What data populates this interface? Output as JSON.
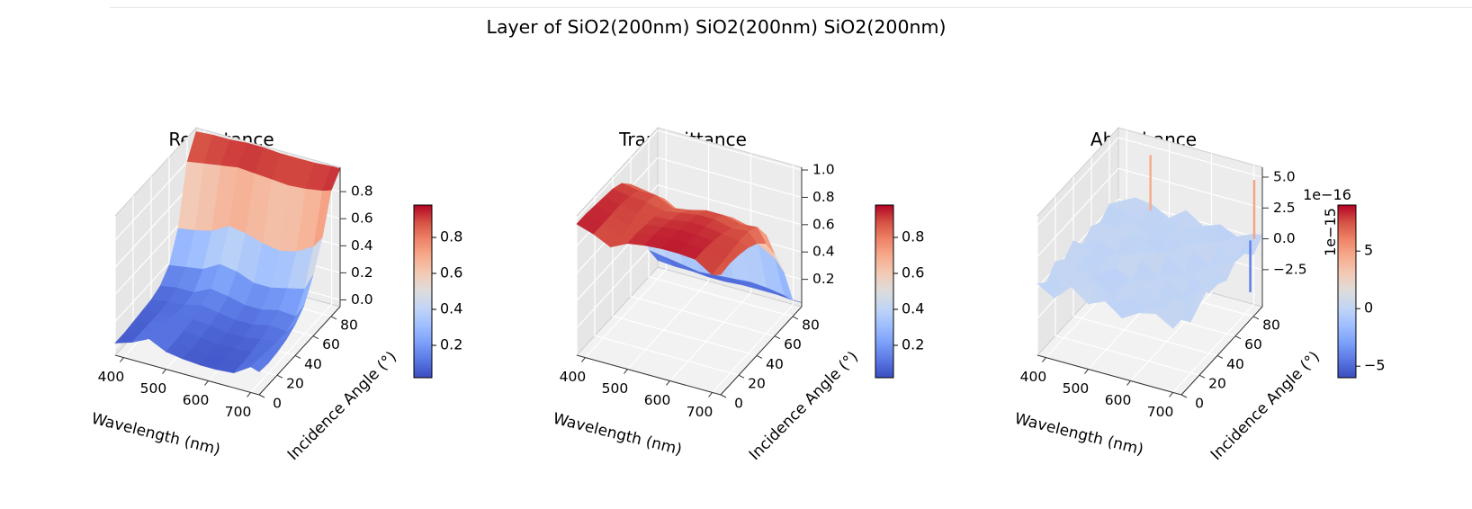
{
  "figure": {
    "suptitle": "Layer of SiO2(200nm) SiO2(200nm) SiO2(200nm)"
  },
  "colormap": [
    "#3b4cc0",
    "#5977e3",
    "#7b9ff9",
    "#9ebeff",
    "#c0d4f5",
    "#dddcdc",
    "#f2cbb7",
    "#f7ac8e",
    "#ee8468",
    "#d65244",
    "#b40426"
  ],
  "chart_data": [
    {
      "type": "surface",
      "title": "Reflectance",
      "xlabel": "Wavelength (nm)",
      "ylabel": "Incidence Angle (°)",
      "x_ticks": [
        "400",
        "500",
        "600",
        "700"
      ],
      "y_ticks": [
        "0",
        "20",
        "40",
        "60",
        "80"
      ],
      "z_ticks": [
        "0.0",
        "0.2",
        "0.4",
        "0.6",
        "0.8"
      ],
      "z_tick_values": [
        0.0,
        0.2,
        0.4,
        0.6,
        0.8
      ],
      "xlim": [
        380,
        720
      ],
      "ylim": [
        0,
        90
      ],
      "zlim": [
        -0.05,
        0.98
      ],
      "colorbar_ticks": [
        "0.2",
        "0.4",
        "0.6",
        "0.8"
      ],
      "colorbar_tick_values": [
        0.2,
        0.4,
        0.6,
        0.8
      ],
      "colorbar_range": [
        0.02,
        0.98
      ],
      "colorbar_offset": "",
      "zaxis_offset": "",
      "grid": true,
      "series": [
        {
          "x": [
            380,
            420,
            460,
            500,
            540,
            580,
            620,
            660,
            700,
            720
          ],
          "y": [
            0,
            10,
            20,
            30,
            40,
            50,
            60,
            70,
            80,
            90
          ],
          "z": [
            [
              0.04,
              0.08,
              0.14,
              0.08,
              0.06,
              0.05,
              0.05,
              0.06,
              0.14,
              0.12
            ],
            [
              0.04,
              0.08,
              0.13,
              0.08,
              0.06,
              0.05,
              0.05,
              0.06,
              0.13,
              0.11
            ],
            [
              0.05,
              0.08,
              0.13,
              0.09,
              0.07,
              0.06,
              0.06,
              0.07,
              0.12,
              0.12
            ],
            [
              0.06,
              0.08,
              0.11,
              0.1,
              0.09,
              0.07,
              0.07,
              0.09,
              0.11,
              0.14
            ],
            [
              0.07,
              0.09,
              0.1,
              0.13,
              0.11,
              0.09,
              0.09,
              0.12,
              0.11,
              0.18
            ],
            [
              0.1,
              0.12,
              0.12,
              0.18,
              0.16,
              0.13,
              0.13,
              0.16,
              0.15,
              0.25
            ],
            [
              0.18,
              0.2,
              0.22,
              0.29,
              0.27,
              0.22,
              0.22,
              0.25,
              0.28,
              0.4
            ],
            [
              0.38,
              0.4,
              0.43,
              0.5,
              0.48,
              0.44,
              0.42,
              0.45,
              0.52,
              0.6
            ],
            [
              0.8,
              0.82,
              0.84,
              0.86,
              0.85,
              0.84,
              0.83,
              0.84,
              0.86,
              0.88
            ],
            [
              0.95,
              0.96,
              0.96,
              0.97,
              0.97,
              0.96,
              0.96,
              0.96,
              0.97,
              0.97
            ]
          ]
        }
      ]
    },
    {
      "type": "surface",
      "title": "Transmittance",
      "xlabel": "Wavelength (nm)",
      "ylabel": "Incidence Angle (°)",
      "x_ticks": [
        "400",
        "500",
        "600",
        "700"
      ],
      "y_ticks": [
        "0",
        "20",
        "40",
        "60",
        "80"
      ],
      "z_ticks": [
        "0.2",
        "0.4",
        "0.6",
        "0.8",
        "1.0"
      ],
      "z_tick_values": [
        0.2,
        0.4,
        0.6,
        0.8,
        1.0
      ],
      "xlim": [
        380,
        720
      ],
      "ylim": [
        0,
        90
      ],
      "zlim": [
        0.0,
        1.02
      ],
      "colorbar_ticks": [
        "0.2",
        "0.4",
        "0.6",
        "0.8"
      ],
      "colorbar_tick_values": [
        0.2,
        0.4,
        0.6,
        0.8
      ],
      "colorbar_range": [
        0.02,
        0.98
      ],
      "colorbar_offset": "",
      "zaxis_offset": "",
      "grid": true,
      "series": [
        {
          "x": [
            380,
            420,
            460,
            500,
            540,
            580,
            620,
            660,
            700,
            720
          ],
          "y": [
            0,
            10,
            20,
            30,
            40,
            50,
            60,
            70,
            80,
            90
          ],
          "z": [
            [
              0.96,
              0.92,
              0.86,
              0.92,
              0.94,
              0.95,
              0.95,
              0.94,
              0.86,
              0.88
            ],
            [
              0.96,
              0.92,
              0.87,
              0.92,
              0.94,
              0.95,
              0.95,
              0.94,
              0.87,
              0.89
            ],
            [
              0.95,
              0.92,
              0.87,
              0.91,
              0.93,
              0.94,
              0.94,
              0.93,
              0.88,
              0.88
            ],
            [
              0.94,
              0.92,
              0.89,
              0.9,
              0.91,
              0.93,
              0.93,
              0.91,
              0.89,
              0.86
            ],
            [
              0.93,
              0.91,
              0.9,
              0.87,
              0.89,
              0.91,
              0.91,
              0.88,
              0.89,
              0.82
            ],
            [
              0.9,
              0.88,
              0.88,
              0.82,
              0.84,
              0.87,
              0.87,
              0.84,
              0.85,
              0.75
            ],
            [
              0.82,
              0.8,
              0.78,
              0.71,
              0.73,
              0.78,
              0.78,
              0.75,
              0.72,
              0.6
            ],
            [
              0.62,
              0.6,
              0.57,
              0.5,
              0.52,
              0.56,
              0.58,
              0.55,
              0.48,
              0.4
            ],
            [
              0.2,
              0.18,
              0.16,
              0.14,
              0.15,
              0.16,
              0.17,
              0.16,
              0.14,
              0.12
            ],
            [
              0.05,
              0.04,
              0.04,
              0.03,
              0.03,
              0.04,
              0.04,
              0.04,
              0.03,
              0.03
            ]
          ]
        }
      ]
    },
    {
      "type": "surface",
      "title": "Absorbance",
      "xlabel": "Wavelength (nm)",
      "ylabel": "Incidence Angle (°)",
      "x_ticks": [
        "400",
        "500",
        "600",
        "700"
      ],
      "y_ticks": [
        "0",
        "20",
        "40",
        "60",
        "80"
      ],
      "z_ticks": [
        "−2.5",
        "0.0",
        "2.5",
        "5.0"
      ],
      "z_tick_values": [
        -2.5,
        0.0,
        2.5,
        5.0
      ],
      "xlim": [
        380,
        720
      ],
      "ylim": [
        0,
        90
      ],
      "zlim": [
        -5.5,
        5.8
      ],
      "colorbar_ticks": [
        "−5",
        "0",
        "5"
      ],
      "colorbar_tick_values": [
        -5,
        0,
        5
      ],
      "colorbar_range": [
        -6,
        9
      ],
      "colorbar_offset": "1e−16",
      "zaxis_offset": "1e−15",
      "grid": true,
      "series": [
        {
          "x": [
            380,
            420,
            460,
            500,
            540,
            580,
            620,
            660,
            700,
            720
          ],
          "y": [
            0,
            10,
            20,
            30,
            40,
            50,
            60,
            70,
            80,
            90
          ],
          "z": [
            [
              0.3,
              -0.5,
              0.8,
              -0.2,
              0.4,
              -0.6,
              0.2,
              0.5,
              -0.3,
              0.6
            ],
            [
              -0.4,
              0.6,
              -0.1,
              0.7,
              -0.5,
              0.3,
              -0.2,
              0.1,
              0.6,
              -0.4
            ],
            [
              0.5,
              -0.2,
              0.4,
              -0.7,
              0.2,
              0.6,
              -0.4,
              0.3,
              -0.1,
              0.2
            ],
            [
              -0.1,
              0.4,
              -0.6,
              0.3,
              -0.3,
              -0.1,
              0.5,
              -0.5,
              0.4,
              0.8
            ],
            [
              0.6,
              -0.3,
              0.2,
              0.5,
              0.7,
              -0.4,
              0.1,
              0.4,
              -0.6,
              0.3
            ],
            [
              -0.5,
              0.2,
              -0.4,
              -0.2,
              0.3,
              0.5,
              -0.6,
              0.2,
              0.5,
              -0.2
            ],
            [
              0.2,
              0.7,
              0.1,
              0.4,
              -0.5,
              0.2,
              0.4,
              -0.3,
              0.1,
              0.6
            ],
            [
              -0.3,
              -0.4,
              0.6,
              -0.6,
              0.1,
              -0.2,
              0.3,
              0.6,
              -0.4,
              0.4
            ],
            [
              0.4,
              0.1,
              -0.3,
              0.2,
              -0.1,
              0.4,
              -0.5,
              0.1,
              0.3,
              -0.5
            ],
            [
              -0.2,
              0.5,
              0.3,
              -0.4,
              0.6,
              -0.3,
              0.2,
              -0.4,
              0.2,
              0.3
            ]
          ],
          "spikes": [
            {
              "x": 460,
              "y": 88,
              "z": 4.5
            },
            {
              "x": 700,
              "y": 86,
              "z": -4.2
            },
            {
              "x": 705,
              "y": 88,
              "z": 4.8
            }
          ]
        }
      ]
    }
  ]
}
